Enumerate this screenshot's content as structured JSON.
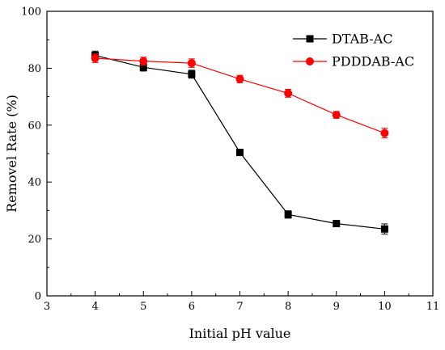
{
  "chart_data": {
    "type": "line",
    "title": "",
    "xlabel": "Initial pH value",
    "ylabel": "Removel Rate (%)",
    "xlim": [
      3,
      11
    ],
    "ylim": [
      0,
      100
    ],
    "xticks": [
      3,
      4,
      5,
      6,
      7,
      8,
      9,
      10,
      11
    ],
    "yticks": [
      0,
      20,
      40,
      60,
      80,
      100
    ],
    "grid": false,
    "legend_position": "top-right",
    "x": [
      4,
      5,
      6,
      7,
      8,
      9,
      10
    ],
    "series": [
      {
        "name": "DTAB-AC",
        "color": "#000000",
        "marker": "square",
        "values": [
          84.5,
          80.3,
          77.9,
          50.4,
          28.6,
          25.4,
          23.5
        ],
        "errors": [
          1.5,
          1.3,
          1.4,
          0.8,
          1.3,
          1.0,
          1.8
        ]
      },
      {
        "name": "PDDDAB-AC",
        "color": "#ff0000",
        "marker": "circle",
        "values": [
          83.5,
          82.5,
          81.8,
          76.2,
          71.2,
          63.6,
          57.2
        ],
        "errors": [
          1.5,
          1.4,
          1.5,
          1.3,
          1.4,
          1.2,
          1.7
        ]
      }
    ]
  }
}
